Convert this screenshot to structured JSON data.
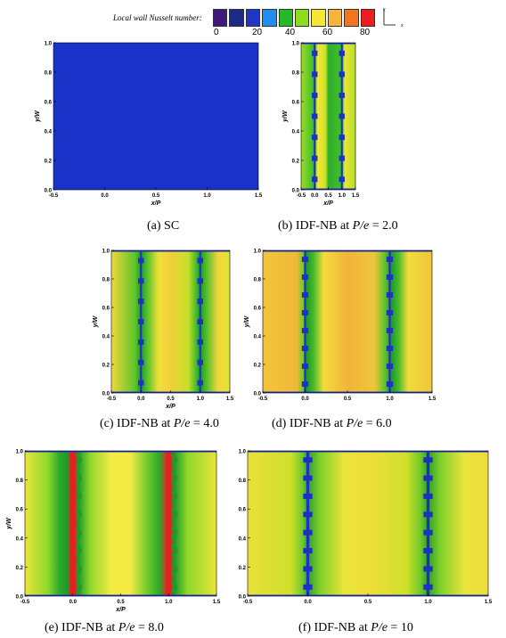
{
  "colorbar": {
    "title": "Local wall Nusselt number:",
    "ticks": [
      "0",
      "20",
      "40",
      "60",
      "80"
    ],
    "swatches": [
      "#3d1a7a",
      "#1d2b88",
      "#1f36c9",
      "#1f8ef0",
      "#22b92a",
      "#8fdc1e",
      "#f6e832",
      "#f8b43b",
      "#f5741d",
      "#ef1d1d"
    ]
  },
  "axes_inset": {
    "y": "y",
    "x": "x"
  },
  "panels": [
    {
      "id": "a",
      "caption_pre": "(a) SC",
      "caption_it": "",
      "caption_post": "",
      "xlabel": "x/P",
      "ylabel": "y/W",
      "xticks": [
        "-0.5",
        "0.0",
        "0.5",
        "1.0",
        "1.5"
      ],
      "yticks": [
        "1.0",
        "0.8",
        "0.6",
        "0.4",
        "0.2",
        "0.0"
      ]
    },
    {
      "id": "b",
      "caption_pre": "(b) IDF-NB at ",
      "caption_it": "P/e",
      "caption_post": " = 2.0",
      "xlabel": "x/P",
      "ylabel": "y/W",
      "xticks": [
        "-0.5",
        "0.0",
        "0.5",
        "1.0",
        "1.5"
      ],
      "yticks": [
        "1.0",
        "0.8",
        "0.6",
        "0.4",
        "0.2",
        "0.0"
      ]
    },
    {
      "id": "c",
      "caption_pre": "(c) IDF-NB at ",
      "caption_it": "P/e",
      "caption_post": " = 4.0",
      "xlabel": "x/P",
      "ylabel": "y/W",
      "xticks": [
        "-0.5",
        "0.0",
        "0.5",
        "1.0",
        "1.5"
      ],
      "yticks": [
        "1.0",
        "0.8",
        "0.6",
        "0.4",
        "0.2",
        "0.0"
      ]
    },
    {
      "id": "d",
      "caption_pre": "(d) IDF-NB at ",
      "caption_it": "P/e",
      "caption_post": " = 6.0",
      "xlabel": "",
      "ylabel": "y/W",
      "xticks": [
        "-0.5",
        "0.0",
        "0.5",
        "1.0",
        "1.5"
      ],
      "yticks": [
        "1.0",
        "0.8",
        "0.6",
        "0.4",
        "0.2",
        "0.0"
      ]
    },
    {
      "id": "e",
      "caption_pre": "(e) IDF-NB at ",
      "caption_it": "P/e",
      "caption_post": " = 8.0",
      "xlabel": "x/P",
      "ylabel": "y/W",
      "xticks": [
        "-0.5",
        "0.0",
        "0.5",
        "1.0",
        "1.5"
      ],
      "yticks": [
        "1.0",
        "0.8",
        "0.6",
        "0.4",
        "0.2",
        "0.0"
      ]
    },
    {
      "id": "f",
      "caption_pre": "(f) IDF-NB at ",
      "caption_it": "P/e",
      "caption_post": " = 10",
      "xlabel": "",
      "ylabel": "",
      "xticks": [
        "-0.5",
        "0.0",
        "0.5",
        "1.0",
        "1.5"
      ],
      "yticks": [
        "1.0",
        "0.8",
        "0.6",
        "0.4",
        "0.2",
        "0.0"
      ]
    }
  ]
}
